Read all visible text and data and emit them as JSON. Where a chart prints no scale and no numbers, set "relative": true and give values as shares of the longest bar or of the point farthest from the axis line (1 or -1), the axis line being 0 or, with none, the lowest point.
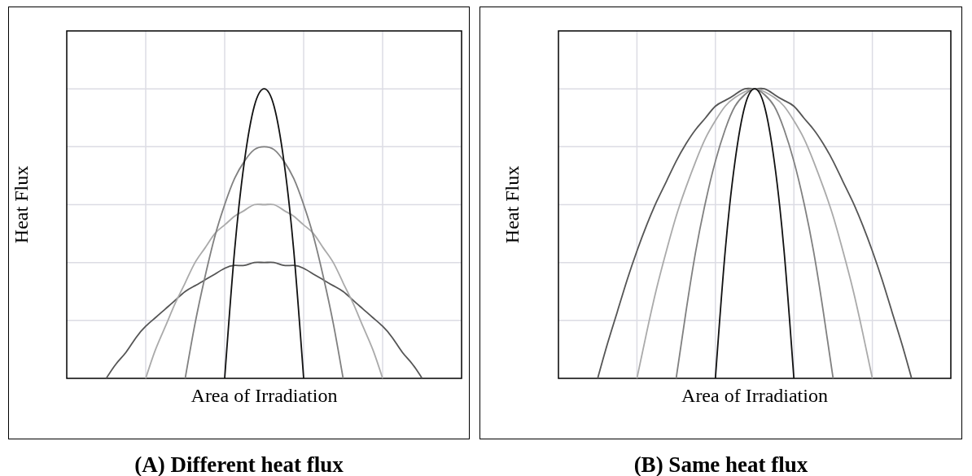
{
  "chart_data": [
    {
      "type": "line",
      "title": "(A) Different heat flux",
      "xlabel": "Area of Irradiation",
      "ylabel": "Heat Flux",
      "relative": true,
      "grid": true,
      "marker": "none",
      "categories": [
        null,
        null,
        null,
        null,
        null,
        null,
        null,
        null,
        null,
        null,
        null,
        null,
        null,
        null,
        null,
        null,
        null,
        null,
        null,
        null,
        null,
        null,
        null,
        null,
        null,
        null,
        null,
        null,
        null,
        null,
        null,
        null,
        null,
        null,
        null,
        null,
        null,
        null,
        null,
        null,
        null
      ],
      "series": [
        {
          "color": "#555555",
          "values": [
            null,
            null,
            null,
            null,
            0,
            0.05,
            0.09,
            0.14,
            0.18,
            0.21,
            0.24,
            0.27,
            0.3,
            0.32,
            0.34,
            0.36,
            0.38,
            0.39,
            0.39,
            0.4,
            0.4,
            0.4,
            0.39,
            0.39,
            0.38,
            0.36,
            0.34,
            0.32,
            0.3,
            0.27,
            0.24,
            0.21,
            0.18,
            0.14,
            0.09,
            0.05,
            0,
            null,
            null,
            null,
            null
          ]
        },
        {
          "color": "#aaaaaa",
          "values": [
            null,
            null,
            null,
            null,
            null,
            null,
            null,
            null,
            0,
            0.1,
            0.18,
            0.26,
            0.33,
            0.4,
            0.45,
            0.5,
            0.53,
            0.56,
            0.58,
            0.6,
            0.6,
            0.6,
            0.58,
            0.56,
            0.53,
            0.5,
            0.45,
            0.4,
            0.33,
            0.26,
            0.18,
            0.1,
            0,
            null,
            null,
            null,
            null,
            null,
            null,
            null,
            null
          ]
        },
        {
          "color": "#808080",
          "values": [
            null,
            null,
            null,
            null,
            null,
            null,
            null,
            null,
            null,
            null,
            null,
            null,
            0,
            0.19,
            0.35,
            0.49,
            0.6,
            0.69,
            0.75,
            0.79,
            0.8,
            0.79,
            0.75,
            0.69,
            0.6,
            0.49,
            0.35,
            0.19,
            0,
            null,
            null,
            null,
            null,
            null,
            null,
            null,
            null,
            null,
            null,
            null,
            null
          ]
        },
        {
          "color": "#111111",
          "values": [
            null,
            null,
            null,
            null,
            null,
            null,
            null,
            null,
            null,
            null,
            null,
            null,
            null,
            null,
            null,
            null,
            0,
            0.44,
            0.75,
            0.94,
            1,
            0.94,
            0.75,
            0.44,
            0,
            null,
            null,
            null,
            null,
            null,
            null,
            null,
            null,
            null,
            null,
            null,
            null,
            null,
            null,
            null,
            null
          ]
        }
      ]
    },
    {
      "type": "line",
      "title": "(B) Same heat flux",
      "xlabel": "Area of Irradiation",
      "ylabel": "Heat Flux",
      "relative": true,
      "grid": true,
      "marker": "none",
      "categories": [
        null,
        null,
        null,
        null,
        null,
        null,
        null,
        null,
        null,
        null,
        null,
        null,
        null,
        null,
        null,
        null,
        null,
        null,
        null,
        null,
        null,
        null,
        null,
        null,
        null,
        null,
        null,
        null,
        null,
        null,
        null,
        null,
        null,
        null,
        null,
        null,
        null,
        null,
        null,
        null,
        null
      ],
      "series": [
        {
          "color": "#555555",
          "values": [
            null,
            null,
            null,
            null,
            0,
            0.12,
            0.23,
            0.34,
            0.44,
            0.53,
            0.61,
            0.68,
            0.75,
            0.81,
            0.86,
            0.9,
            0.94,
            0.96,
            0.98,
            1,
            1,
            1,
            0.98,
            0.96,
            0.94,
            0.9,
            0.86,
            0.81,
            0.75,
            0.68,
            0.61,
            0.53,
            0.44,
            0.34,
            0.23,
            0.12,
            0,
            null,
            null,
            null,
            null
          ]
        },
        {
          "color": "#aaaaaa",
          "values": [
            null,
            null,
            null,
            null,
            null,
            null,
            null,
            null,
            0,
            0.16,
            0.31,
            0.44,
            0.56,
            0.66,
            0.75,
            0.83,
            0.89,
            0.94,
            0.97,
            0.99,
            1,
            0.99,
            0.97,
            0.94,
            0.89,
            0.83,
            0.75,
            0.66,
            0.56,
            0.44,
            0.31,
            0.16,
            0,
            null,
            null,
            null,
            null,
            null,
            null,
            null,
            null
          ]
        },
        {
          "color": "#808080",
          "values": [
            null,
            null,
            null,
            null,
            null,
            null,
            null,
            null,
            null,
            null,
            null,
            null,
            0,
            0.23,
            0.44,
            0.61,
            0.75,
            0.86,
            0.94,
            0.98,
            1,
            0.98,
            0.94,
            0.86,
            0.75,
            0.61,
            0.44,
            0.23,
            0,
            null,
            null,
            null,
            null,
            null,
            null,
            null,
            null,
            null,
            null,
            null,
            null
          ]
        },
        {
          "color": "#111111",
          "values": [
            null,
            null,
            null,
            null,
            null,
            null,
            null,
            null,
            null,
            null,
            null,
            null,
            null,
            null,
            null,
            null,
            0,
            0.44,
            0.75,
            0.94,
            1,
            0.94,
            0.75,
            0.44,
            0,
            null,
            null,
            null,
            null,
            null,
            null,
            null,
            null,
            null,
            null,
            null,
            null,
            null,
            null,
            null,
            null
          ]
        }
      ]
    }
  ]
}
